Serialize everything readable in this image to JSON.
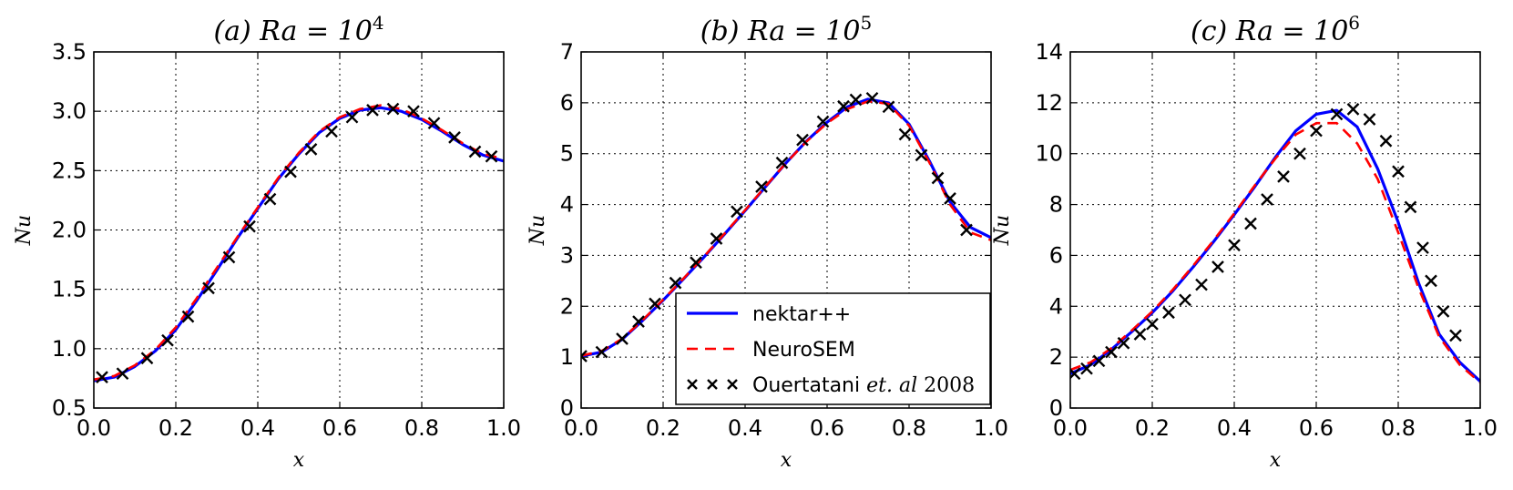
{
  "chart_data": [
    {
      "type": "line",
      "title": {
        "prefix": "(a) ",
        "main": "Ra = 10",
        "sup": "4"
      },
      "xlabel": "x",
      "ylabel": "Nu",
      "xlim": [
        0.0,
        1.0
      ],
      "ylim": [
        0.5,
        3.5
      ],
      "xticks": [
        0.0,
        0.2,
        0.4,
        0.6,
        0.8,
        1.0
      ],
      "yticks": [
        0.5,
        1.0,
        1.5,
        2.0,
        2.5,
        3.0,
        3.5
      ],
      "grid": true,
      "series": [
        {
          "name": "nektar++",
          "style": "solid",
          "color": "#0000ff",
          "x": [
            0,
            0.05,
            0.1,
            0.15,
            0.2,
            0.25,
            0.3,
            0.35,
            0.4,
            0.45,
            0.5,
            0.55,
            0.6,
            0.65,
            0.7,
            0.75,
            0.8,
            0.85,
            0.9,
            0.95,
            1.0
          ],
          "y": [
            0.73,
            0.76,
            0.85,
            0.98,
            1.16,
            1.4,
            1.66,
            1.93,
            2.18,
            2.43,
            2.64,
            2.82,
            2.94,
            3.01,
            3.03,
            3.0,
            2.93,
            2.83,
            2.72,
            2.63,
            2.58
          ]
        },
        {
          "name": "NeuroSEM",
          "style": "dashed",
          "color": "#ff0000",
          "x": [
            0,
            0.05,
            0.1,
            0.15,
            0.2,
            0.25,
            0.3,
            0.35,
            0.4,
            0.45,
            0.5,
            0.55,
            0.6,
            0.65,
            0.7,
            0.75,
            0.8,
            0.85,
            0.9,
            0.95,
            1.0
          ],
          "y": [
            0.74,
            0.77,
            0.86,
            0.99,
            1.18,
            1.42,
            1.68,
            1.94,
            2.19,
            2.44,
            2.65,
            2.83,
            2.95,
            3.02,
            3.05,
            3.02,
            2.94,
            2.84,
            2.73,
            2.64,
            2.6
          ]
        },
        {
          "name": "Ouertatani et. al 2008",
          "style": "x",
          "color": "#000000",
          "x": [
            0.02,
            0.07,
            0.13,
            0.18,
            0.23,
            0.28,
            0.33,
            0.38,
            0.43,
            0.48,
            0.53,
            0.58,
            0.63,
            0.68,
            0.73,
            0.78,
            0.83,
            0.88,
            0.93,
            0.97
          ],
          "y": [
            0.76,
            0.79,
            0.92,
            1.07,
            1.27,
            1.51,
            1.77,
            2.03,
            2.26,
            2.49,
            2.68,
            2.83,
            2.95,
            3.01,
            3.02,
            3.0,
            2.9,
            2.78,
            2.66,
            2.62
          ]
        }
      ]
    },
    {
      "type": "line",
      "title": {
        "prefix": "(b) ",
        "main": "Ra = 10",
        "sup": "5"
      },
      "xlabel": "x",
      "ylabel": "Nu",
      "xlim": [
        0.0,
        1.0
      ],
      "ylim": [
        0,
        7
      ],
      "xticks": [
        0.0,
        0.2,
        0.4,
        0.6,
        0.8,
        1.0
      ],
      "yticks": [
        0,
        1,
        2,
        3,
        4,
        5,
        6,
        7
      ],
      "grid": true,
      "legend": {
        "location": "lower-center",
        "entries": [
          {
            "label": "nektar++"
          },
          {
            "label": "NeuroSEM"
          },
          {
            "label": "Ouertatani ",
            "cite": "et. al",
            "year": " 2008"
          }
        ]
      },
      "series": [
        {
          "name": "nektar++",
          "style": "solid",
          "color": "#0000ff",
          "x": [
            0,
            0.05,
            0.1,
            0.15,
            0.2,
            0.25,
            0.3,
            0.35,
            0.4,
            0.45,
            0.5,
            0.55,
            0.6,
            0.65,
            0.7,
            0.75,
            0.8,
            0.85,
            0.9,
            0.95,
            1.0
          ],
          "y": [
            1.02,
            1.1,
            1.35,
            1.72,
            2.12,
            2.54,
            2.97,
            3.42,
            3.88,
            4.35,
            4.82,
            5.25,
            5.62,
            5.92,
            6.07,
            6.0,
            5.58,
            4.85,
            4.05,
            3.55,
            3.35
          ]
        },
        {
          "name": "NeuroSEM",
          "style": "dashed",
          "color": "#ff0000",
          "x": [
            0,
            0.05,
            0.1,
            0.15,
            0.2,
            0.25,
            0.3,
            0.35,
            0.4,
            0.45,
            0.5,
            0.55,
            0.6,
            0.65,
            0.7,
            0.75,
            0.8,
            0.85,
            0.9,
            0.95,
            1.0
          ],
          "y": [
            1.03,
            1.12,
            1.36,
            1.73,
            2.13,
            2.55,
            2.98,
            3.43,
            3.89,
            4.36,
            4.82,
            5.24,
            5.6,
            5.88,
            6.03,
            5.98,
            5.55,
            4.82,
            4.0,
            3.45,
            3.3
          ]
        },
        {
          "name": "Ouertatani et. al 2008",
          "style": "x",
          "color": "#000000",
          "x": [
            0.0,
            0.05,
            0.1,
            0.14,
            0.18,
            0.23,
            0.28,
            0.33,
            0.38,
            0.44,
            0.49,
            0.54,
            0.59,
            0.64,
            0.67,
            0.71,
            0.75,
            0.79,
            0.83,
            0.87,
            0.9,
            0.94
          ],
          "y": [
            1.02,
            1.1,
            1.36,
            1.7,
            2.05,
            2.46,
            2.86,
            3.33,
            3.86,
            4.35,
            4.82,
            5.27,
            5.63,
            5.93,
            6.06,
            6.09,
            5.92,
            5.38,
            4.97,
            4.52,
            4.12,
            3.5
          ]
        }
      ]
    },
    {
      "type": "line",
      "title": {
        "prefix": "(c) ",
        "main": "Ra = 10",
        "sup": "6"
      },
      "xlabel": "x",
      "ylabel": "Nu",
      "xlim": [
        0.0,
        1.0
      ],
      "ylim": [
        0,
        14
      ],
      "xticks": [
        0.0,
        0.2,
        0.4,
        0.6,
        0.8,
        1.0
      ],
      "yticks": [
        0,
        2,
        4,
        6,
        8,
        10,
        12,
        14
      ],
      "grid": true,
      "series": [
        {
          "name": "nektar++",
          "style": "solid",
          "color": "#0000ff",
          "x": [
            0,
            0.05,
            0.1,
            0.15,
            0.2,
            0.25,
            0.3,
            0.35,
            0.4,
            0.45,
            0.5,
            0.55,
            0.6,
            0.65,
            0.7,
            0.75,
            0.8,
            0.85,
            0.9,
            0.95,
            1.0
          ],
          "y": [
            1.35,
            1.7,
            2.3,
            3.0,
            3.75,
            4.6,
            5.55,
            6.55,
            7.6,
            8.7,
            9.85,
            10.9,
            11.55,
            11.7,
            11.05,
            9.4,
            7.3,
            4.9,
            2.9,
            1.8,
            1.05
          ]
        },
        {
          "name": "NeuroSEM",
          "style": "dashed",
          "color": "#ff0000",
          "x": [
            0,
            0.05,
            0.1,
            0.15,
            0.2,
            0.25,
            0.3,
            0.35,
            0.4,
            0.45,
            0.5,
            0.55,
            0.6,
            0.65,
            0.7,
            0.75,
            0.8,
            0.85,
            0.9,
            0.95,
            1.0
          ],
          "y": [
            1.5,
            1.8,
            2.35,
            3.05,
            3.8,
            4.65,
            5.6,
            6.6,
            7.65,
            8.75,
            9.8,
            10.75,
            11.2,
            11.2,
            10.4,
            9.0,
            6.9,
            4.7,
            2.8,
            1.7,
            1.0
          ]
        },
        {
          "name": "Ouertatani et. al 2008",
          "style": "x",
          "color": "#000000",
          "x": [
            0.01,
            0.04,
            0.07,
            0.1,
            0.13,
            0.17,
            0.2,
            0.24,
            0.28,
            0.32,
            0.36,
            0.4,
            0.44,
            0.48,
            0.52,
            0.56,
            0.6,
            0.65,
            0.69,
            0.73,
            0.77,
            0.8,
            0.83,
            0.86,
            0.88,
            0.91,
            0.94
          ],
          "y": [
            1.35,
            1.55,
            1.85,
            2.2,
            2.55,
            2.9,
            3.3,
            3.75,
            4.25,
            4.85,
            5.55,
            6.4,
            7.25,
            8.2,
            9.1,
            10.0,
            10.9,
            11.55,
            11.75,
            11.35,
            10.5,
            9.3,
            7.9,
            6.3,
            5.0,
            3.8,
            2.85
          ]
        }
      ]
    }
  ]
}
